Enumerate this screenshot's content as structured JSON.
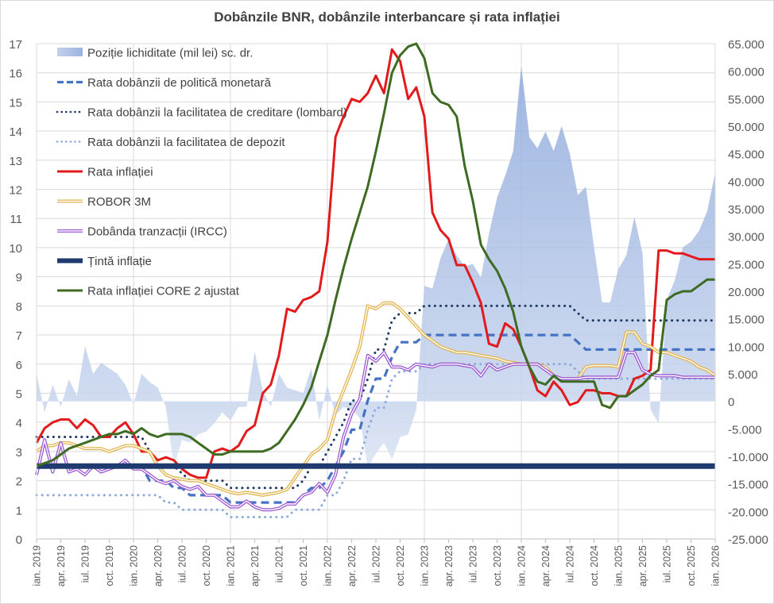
{
  "chart_data": {
    "type": "line",
    "title": "Dobânzile BNR, dobânzile interbancare și rata inflației",
    "xlabel": "",
    "ylabel": "",
    "y2label": "",
    "ylim": [
      0,
      17
    ],
    "y2lim": [
      -25000,
      65000
    ],
    "yticks": [
      "0",
      "1",
      "2",
      "3",
      "4",
      "5",
      "6",
      "7",
      "8",
      "9",
      "10",
      "11",
      "12",
      "13",
      "14",
      "15",
      "16",
      "17"
    ],
    "y2ticks": [
      "-25.000",
      "-20.000",
      "-15.000",
      "-10.000",
      "-5.000",
      "0",
      "5.000",
      "10.000",
      "15.000",
      "20.000",
      "25.000",
      "30.000",
      "35.000",
      "40.000",
      "45.000",
      "50.000",
      "55.000",
      "60.000",
      "65.000"
    ],
    "grid": true,
    "legend_position": "top-left",
    "x_tick_labels": [
      "ian. 2019",
      "apr. 2019",
      "iul. 2019",
      "oct. 2019",
      "ian. 2020",
      "apr. 2020",
      "iul. 2020",
      "oct. 2020",
      "ian. 2021",
      "apr. 2021",
      "iul. 2021",
      "oct. 2021",
      "ian. 2022",
      "apr. 2022",
      "iul. 2022",
      "oct. 2022",
      "ian. 2023",
      "apr. 2023",
      "iul. 2023",
      "oct. 2023",
      "ian. 2024",
      "apr. 2024",
      "iul. 2024",
      "oct. 2024",
      "ian. 2025",
      "apr. 2025",
      "iul. 2025",
      "oct. 2025",
      "ian. 2026"
    ],
    "x_period": {
      "start": "ian. 2019",
      "end": "ian. 2026",
      "frequency": "monthly",
      "points": 85
    },
    "series": [
      {
        "name": "Poziție lichiditate (mil lei) sc. dr.",
        "type": "area",
        "axis": "right",
        "color": "#a9bfe3",
        "values": [
          5000,
          -2000,
          3000,
          -1000,
          4000,
          1000,
          10000,
          5000,
          7000,
          6000,
          5000,
          3000,
          -500,
          5000,
          3500,
          2500,
          -1000,
          -12000,
          -7000,
          -7500,
          -6000,
          -5500,
          -4000,
          -2000,
          -3500,
          -1000,
          -1000,
          9000,
          2000,
          -1000,
          5000,
          2500,
          2000,
          1500,
          6000,
          -3500,
          3000,
          -2500,
          -1000,
          -1500,
          -3000,
          -12000,
          -9500,
          -7500,
          -10500,
          -6500,
          -6000,
          -1500,
          21000,
          20500,
          26000,
          29500,
          26500,
          24500,
          25000,
          22500,
          30500,
          37000,
          41000,
          45500,
          61000,
          48000,
          46000,
          49000,
          45500,
          50000,
          45000,
          37500,
          39000,
          28000,
          18000,
          18000,
          24000,
          26500,
          33500,
          27000,
          -1500,
          -4000,
          18500,
          22000,
          28000,
          29000,
          31000,
          34500,
          41500
        ]
      },
      {
        "name": "Rata dobânzii de politică monetară",
        "type": "line",
        "axis": "left",
        "color": "#4472c4",
        "dash": "dashed",
        "values": [
          2.5,
          2.5,
          2.5,
          2.5,
          2.5,
          2.5,
          2.5,
          2.5,
          2.5,
          2.5,
          2.5,
          2.5,
          2.5,
          2.5,
          2.0,
          2.0,
          2.0,
          1.75,
          1.75,
          1.5,
          1.5,
          1.5,
          1.5,
          1.5,
          1.25,
          1.25,
          1.25,
          1.25,
          1.25,
          1.25,
          1.25,
          1.25,
          1.25,
          1.5,
          1.75,
          1.75,
          2.0,
          2.5,
          3.0,
          3.75,
          3.75,
          4.75,
          5.5,
          5.5,
          6.25,
          6.75,
          6.75,
          6.75,
          7.0,
          7.0,
          7.0,
          7.0,
          7.0,
          7.0,
          7.0,
          7.0,
          7.0,
          7.0,
          7.0,
          7.0,
          7.0,
          7.0,
          7.0,
          7.0,
          7.0,
          7.0,
          7.0,
          6.75,
          6.5,
          6.5,
          6.5,
          6.5,
          6.5,
          6.5,
          6.5,
          6.5,
          6.5,
          6.5,
          6.5,
          6.5,
          6.5,
          6.5,
          6.5,
          6.5,
          6.5
        ]
      },
      {
        "name": "Rata dobânzii la facilitatea de creditare (lombard)",
        "type": "line",
        "axis": "left",
        "color": "#1f3864",
        "dash": "dotted",
        "values": [
          3.5,
          3.5,
          3.5,
          3.5,
          3.5,
          3.5,
          3.5,
          3.5,
          3.5,
          3.5,
          3.5,
          3.5,
          3.5,
          3.5,
          3.0,
          2.5,
          2.5,
          2.5,
          2.25,
          2.0,
          2.0,
          2.0,
          2.0,
          2.0,
          1.75,
          1.75,
          1.75,
          1.75,
          1.75,
          1.75,
          1.75,
          1.75,
          1.75,
          2.0,
          2.5,
          2.5,
          3.0,
          3.5,
          4.0,
          4.75,
          4.75,
          5.5,
          6.5,
          6.5,
          7.5,
          7.75,
          7.75,
          7.75,
          8.0,
          8.0,
          8.0,
          8.0,
          8.0,
          8.0,
          8.0,
          8.0,
          8.0,
          8.0,
          8.0,
          8.0,
          8.0,
          8.0,
          8.0,
          8.0,
          8.0,
          8.0,
          8.0,
          7.75,
          7.5,
          7.5,
          7.5,
          7.5,
          7.5,
          7.5,
          7.5,
          7.5,
          7.5,
          7.5,
          7.5,
          7.5,
          7.5,
          7.5,
          7.5,
          7.5,
          7.5
        ]
      },
      {
        "name": "Rata dobânzii la facilitatea de depozit",
        "type": "line",
        "axis": "left",
        "color": "#8eaadb",
        "dash": "dotted",
        "values": [
          1.5,
          1.5,
          1.5,
          1.5,
          1.5,
          1.5,
          1.5,
          1.5,
          1.5,
          1.5,
          1.5,
          1.5,
          1.5,
          1.5,
          1.5,
          1.5,
          1.25,
          1.25,
          1.0,
          1.0,
          1.0,
          1.0,
          1.0,
          1.0,
          0.75,
          0.75,
          0.75,
          0.75,
          0.75,
          0.75,
          0.75,
          0.75,
          1.0,
          1.0,
          1.0,
          1.0,
          1.5,
          1.5,
          2.0,
          2.75,
          2.75,
          3.75,
          4.5,
          4.5,
          5.5,
          5.75,
          5.75,
          5.75,
          6.0,
          6.0,
          6.0,
          6.0,
          6.0,
          6.0,
          6.0,
          6.0,
          6.0,
          6.0,
          6.0,
          6.0,
          6.0,
          6.0,
          6.0,
          6.0,
          6.0,
          6.0,
          6.0,
          5.75,
          5.5,
          5.5,
          5.5,
          5.5,
          5.5,
          5.5,
          5.5,
          5.5,
          5.5,
          5.5,
          5.5,
          5.5,
          5.5,
          5.5,
          5.5,
          5.5,
          5.5
        ]
      },
      {
        "name": "Rata inflației",
        "type": "line",
        "axis": "left",
        "color": "#e31a1c",
        "values": [
          3.3,
          3.8,
          4.0,
          4.1,
          4.1,
          3.8,
          4.1,
          3.9,
          3.5,
          3.5,
          3.8,
          4.0,
          3.6,
          3.0,
          3.0,
          2.7,
          2.8,
          2.7,
          2.4,
          2.2,
          2.1,
          2.1,
          3.0,
          3.1,
          3.0,
          3.2,
          3.7,
          3.9,
          5.0,
          5.3,
          6.3,
          7.9,
          7.8,
          8.2,
          8.3,
          8.5,
          10.2,
          13.8,
          14.5,
          15.1,
          15.0,
          15.3,
          15.9,
          15.3,
          16.8,
          16.4,
          15.1,
          15.5,
          14.5,
          11.2,
          10.6,
          10.3,
          9.4,
          9.4,
          8.8,
          8.1,
          6.7,
          6.6,
          7.4,
          7.2,
          6.6,
          5.9,
          5.1,
          4.9,
          5.4,
          5.1,
          4.6,
          4.7,
          5.1,
          5.1,
          5.0,
          5.0,
          4.9,
          4.9,
          5.5,
          5.6,
          5.8,
          9.9,
          9.9,
          9.8,
          9.8,
          9.7,
          9.6,
          9.6,
          9.6
        ]
      },
      {
        "name": "ROBOR 3M",
        "type": "line",
        "axis": "left",
        "color": "#e0b34b",
        "style": "double",
        "values": [
          3.0,
          3.2,
          3.2,
          3.3,
          3.3,
          3.2,
          3.1,
          3.1,
          3.1,
          3.0,
          3.1,
          3.2,
          3.2,
          3.1,
          3.0,
          2.5,
          2.2,
          2.1,
          2.05,
          2.0,
          2.0,
          1.9,
          1.8,
          1.7,
          1.6,
          1.55,
          1.6,
          1.55,
          1.5,
          1.55,
          1.6,
          1.7,
          2.1,
          2.5,
          2.9,
          3.1,
          3.4,
          4.4,
          5.1,
          5.8,
          6.6,
          8.0,
          7.9,
          8.1,
          8.1,
          7.9,
          7.6,
          7.3,
          7.0,
          6.8,
          6.6,
          6.5,
          6.4,
          6.4,
          6.35,
          6.3,
          6.25,
          6.2,
          6.1,
          6.05,
          6.0,
          6.0,
          6.0,
          5.9,
          5.6,
          5.5,
          5.5,
          5.5,
          5.9,
          5.95,
          5.95,
          5.95,
          5.9,
          7.1,
          7.1,
          6.7,
          6.6,
          6.4,
          6.4,
          6.3,
          6.2,
          6.1,
          5.9,
          5.8,
          5.6
        ]
      },
      {
        "name": "Dobânda tranzacții (IRCC)",
        "type": "line",
        "axis": "left",
        "color": "#9b59d0",
        "style": "double",
        "values": [
          2.2,
          3.4,
          2.3,
          3.3,
          2.3,
          2.4,
          2.2,
          2.5,
          2.3,
          2.4,
          2.5,
          2.7,
          2.4,
          2.4,
          2.2,
          2.0,
          1.9,
          2.0,
          1.8,
          1.7,
          1.8,
          1.5,
          1.5,
          1.3,
          1.1,
          1.1,
          1.3,
          1.1,
          1.0,
          1.0,
          1.05,
          1.2,
          1.2,
          1.5,
          1.6,
          1.9,
          1.6,
          2.2,
          3.5,
          4.3,
          4.8,
          6.3,
          6.1,
          6.4,
          5.9,
          5.9,
          5.8,
          6.0,
          5.95,
          5.9,
          6.0,
          6.0,
          6.0,
          5.95,
          5.9,
          5.6,
          6.0,
          5.8,
          5.9,
          6.0,
          6.0,
          6.0,
          6.0,
          5.8,
          5.6,
          5.5,
          5.5,
          5.5,
          5.55,
          5.55,
          5.55,
          5.55,
          5.55,
          6.4,
          6.4,
          5.8,
          5.65,
          5.6,
          5.6,
          5.6,
          5.55,
          5.55,
          5.55,
          5.55,
          5.55
        ]
      },
      {
        "name": "Țintă inflație",
        "type": "line",
        "axis": "left",
        "color": "#1f3a6e",
        "values": [
          2.5,
          2.5,
          2.5,
          2.5,
          2.5,
          2.5,
          2.5,
          2.5,
          2.5,
          2.5,
          2.5,
          2.5,
          2.5,
          2.5,
          2.5,
          2.5,
          2.5,
          2.5,
          2.5,
          2.5,
          2.5,
          2.5,
          2.5,
          2.5,
          2.5,
          2.5,
          2.5,
          2.5,
          2.5,
          2.5,
          2.5,
          2.5,
          2.5,
          2.5,
          2.5,
          2.5,
          2.5,
          2.5,
          2.5,
          2.5,
          2.5,
          2.5,
          2.5,
          2.5,
          2.5,
          2.5,
          2.5,
          2.5,
          2.5,
          2.5,
          2.5,
          2.5,
          2.5,
          2.5,
          2.5,
          2.5,
          2.5,
          2.5,
          2.5,
          2.5,
          2.5,
          2.5,
          2.5,
          2.5,
          2.5,
          2.5,
          2.5,
          2.5,
          2.5,
          2.5,
          2.5,
          2.5,
          2.5,
          2.5,
          2.5,
          2.5,
          2.5,
          2.5,
          2.5,
          2.5,
          2.5,
          2.5,
          2.5,
          2.5,
          2.5
        ]
      },
      {
        "name": "Rata inflației CORE 2 ajustat",
        "type": "line",
        "axis": "left",
        "color": "#3d6b21",
        "values": [
          2.5,
          2.6,
          2.7,
          2.9,
          3.1,
          3.2,
          3.3,
          3.4,
          3.5,
          3.6,
          3.6,
          3.7,
          3.6,
          3.8,
          3.6,
          3.5,
          3.6,
          3.6,
          3.6,
          3.5,
          3.3,
          3.1,
          2.9,
          2.9,
          3.0,
          3.0,
          3.0,
          3.0,
          3.0,
          3.1,
          3.3,
          3.7,
          4.1,
          4.6,
          5.2,
          6.1,
          7.0,
          8.2,
          9.3,
          10.3,
          11.2,
          12.1,
          13.3,
          14.6,
          16.0,
          16.6,
          16.9,
          17.0,
          16.5,
          15.3,
          15.0,
          14.9,
          14.5,
          12.8,
          11.6,
          10.1,
          9.6,
          9.2,
          8.6,
          7.8,
          6.6,
          5.9,
          5.4,
          5.3,
          5.6,
          5.4,
          5.4,
          5.4,
          5.4,
          5.4,
          4.6,
          4.5,
          4.9,
          4.9,
          5.1,
          5.3,
          5.6,
          5.8,
          8.2,
          8.4,
          8.5,
          8.5,
          8.7,
          8.9,
          8.9
        ]
      }
    ]
  }
}
